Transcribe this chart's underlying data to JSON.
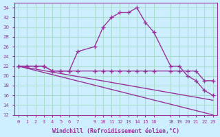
{
  "xlabel": "Windchill (Refroidissement éolien,°C)",
  "background_color": "#cceeff",
  "grid_color": "#aaddcc",
  "line_color": "#993399",
  "xlim": [
    -0.5,
    23.5
  ],
  "ylim": [
    12,
    35
  ],
  "xticks": [
    0,
    1,
    2,
    3,
    4,
    5,
    6,
    7,
    9,
    10,
    11,
    12,
    13,
    14,
    15,
    16,
    18,
    19,
    20,
    21,
    22,
    23
  ],
  "yticks": [
    12,
    14,
    16,
    18,
    20,
    22,
    24,
    26,
    28,
    30,
    32,
    34
  ],
  "series": [
    {
      "x": [
        0,
        1,
        2,
        3,
        4,
        5,
        6,
        7,
        9,
        10,
        11,
        12,
        13,
        14,
        15,
        16,
        18,
        19,
        20,
        21,
        22,
        23
      ],
      "y": [
        22,
        22,
        22,
        22,
        21,
        21,
        21,
        25,
        26,
        30,
        32,
        33,
        33,
        34,
        31,
        29,
        22,
        22,
        20,
        19,
        17,
        16
      ],
      "marker": "+"
    },
    {
      "x": [
        0,
        1,
        2,
        3,
        4,
        5,
        6,
        7,
        9,
        10,
        11,
        12,
        13,
        14,
        15,
        16,
        18,
        19,
        20,
        21,
        22,
        23
      ],
      "y": [
        22,
        22,
        22,
        22,
        21,
        21,
        21,
        21,
        21,
        21,
        21,
        21,
        21,
        21,
        21,
        21,
        21,
        21,
        21,
        21,
        19,
        19
      ],
      "marker": "+"
    },
    {
      "x": [
        0,
        23
      ],
      "y": [
        22,
        12
      ],
      "marker": null
    },
    {
      "x": [
        0,
        23
      ],
      "y": [
        22,
        15
      ],
      "marker": null
    }
  ]
}
